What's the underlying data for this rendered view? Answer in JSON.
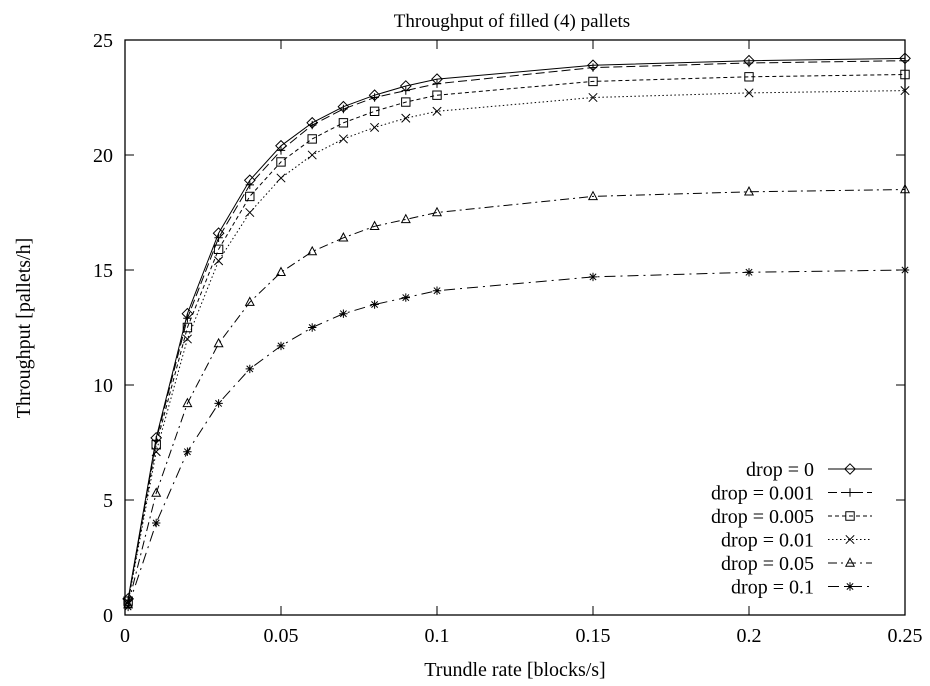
{
  "chart_data": {
    "type": "line",
    "title": "Throughput of filled (4) pallets",
    "xlabel": "Trundle rate [blocks/s]",
    "ylabel": "Throughput [pallets/h]",
    "xlim": [
      0,
      0.25
    ],
    "ylim": [
      0,
      25
    ],
    "xticks": [
      0,
      0.05,
      0.1,
      0.15,
      0.2,
      0.25
    ],
    "xtick_labels": [
      "0",
      "0.05",
      "0.1",
      "0.15",
      "0.2",
      "0.25"
    ],
    "yticks": [
      0,
      5,
      10,
      15,
      20,
      25
    ],
    "ytick_labels": [
      "0",
      "5",
      "10",
      "15",
      "20",
      "25"
    ],
    "grid": false,
    "legend_position": "bottom-right",
    "x": [
      0.001,
      0.01,
      0.02,
      0.03,
      0.04,
      0.05,
      0.06,
      0.07,
      0.08,
      0.09,
      0.1,
      0.15,
      0.2,
      0.25
    ],
    "series": [
      {
        "name": "drop = 0",
        "marker": "diamond",
        "dash": "",
        "values": [
          0.7,
          7.7,
          13.1,
          16.6,
          18.9,
          20.4,
          21.4,
          22.1,
          22.6,
          23.0,
          23.3,
          23.9,
          24.1,
          24.2
        ]
      },
      {
        "name": "drop = 0.001",
        "marker": "plus",
        "dash": "9,4",
        "values": [
          0.65,
          7.6,
          12.9,
          16.4,
          18.7,
          20.2,
          21.3,
          22.0,
          22.5,
          22.8,
          23.1,
          23.8,
          24.0,
          24.1
        ]
      },
      {
        "name": "drop = 0.005",
        "marker": "square",
        "dash": "4,3",
        "values": [
          0.6,
          7.4,
          12.5,
          15.9,
          18.2,
          19.7,
          20.7,
          21.4,
          21.9,
          22.3,
          22.6,
          23.2,
          23.4,
          23.5
        ]
      },
      {
        "name": "drop = 0.01",
        "marker": "cross",
        "dash": "1.5,2.5",
        "values": [
          0.55,
          7.1,
          12.0,
          15.4,
          17.5,
          19.0,
          20.0,
          20.7,
          21.2,
          21.6,
          21.9,
          22.5,
          22.7,
          22.8
        ]
      },
      {
        "name": "drop = 0.05",
        "marker": "triangle",
        "dash": "9,4,2,4",
        "values": [
          0.45,
          5.3,
          9.2,
          11.8,
          13.6,
          14.9,
          15.8,
          16.4,
          16.9,
          17.2,
          17.5,
          18.2,
          18.4,
          18.5
        ]
      },
      {
        "name": "drop = 0.1",
        "marker": "star",
        "dash": "11,5,2,5",
        "values": [
          0.35,
          4.0,
          7.1,
          9.2,
          10.7,
          11.7,
          12.5,
          13.1,
          13.5,
          13.8,
          14.1,
          14.7,
          14.9,
          15.0
        ]
      }
    ]
  }
}
